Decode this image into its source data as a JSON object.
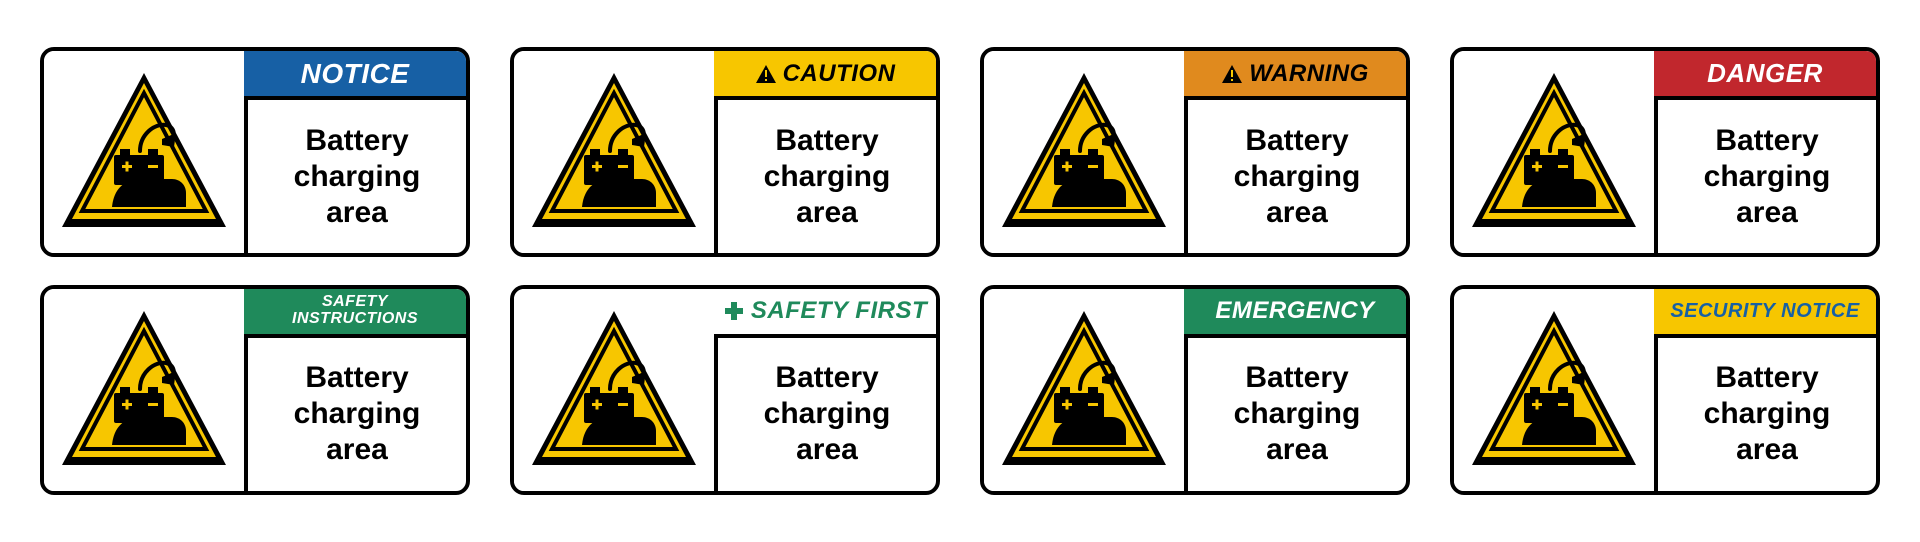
{
  "message": {
    "line1": "Battery",
    "line2": "charging",
    "line3": "area",
    "fontsize": 30,
    "color": "#000000"
  },
  "pictogram": {
    "triangle_fill": "#f7c600",
    "triangle_border": "#000000",
    "symbol_color": "#000000",
    "background": "#ffffff"
  },
  "signs": [
    {
      "label": "NOTICE",
      "bg": "#1760a5",
      "fg": "#ffffff",
      "fontsize": 28,
      "icon": null
    },
    {
      "label": "CAUTION",
      "bg": "#f7c600",
      "fg": "#000000",
      "fontsize": 24,
      "icon": "triangle-black"
    },
    {
      "label": "WARNING",
      "bg": "#e08a1e",
      "fg": "#000000",
      "fontsize": 24,
      "icon": "triangle-black"
    },
    {
      "label": "DANGER",
      "bg": "#c1272d",
      "fg": "#ffffff",
      "fontsize": 26,
      "icon": null
    },
    {
      "label": "SAFETY INSTRUCTIONS",
      "bg": "#1f8a5b",
      "fg": "#ffffff",
      "fontsize": 16,
      "icon": null,
      "two_line": true
    },
    {
      "label": "SAFETY FIRST",
      "bg": "#ffffff",
      "fg": "#1f8a5b",
      "fontsize": 24,
      "icon": "cross-green"
    },
    {
      "label": "EMERGENCY",
      "bg": "#1f8a5b",
      "fg": "#ffffff",
      "fontsize": 24,
      "icon": null
    },
    {
      "label": "SECURITY NOTICE",
      "bg": "#f7c600",
      "fg": "#1760a5",
      "fontsize": 20,
      "icon": null
    }
  ],
  "layout": {
    "columns": 4,
    "rows": 2,
    "sign_width": 430,
    "sign_height": 210,
    "border_color": "#000000",
    "border_width": 4,
    "border_radius": 14,
    "background": "#ffffff"
  }
}
